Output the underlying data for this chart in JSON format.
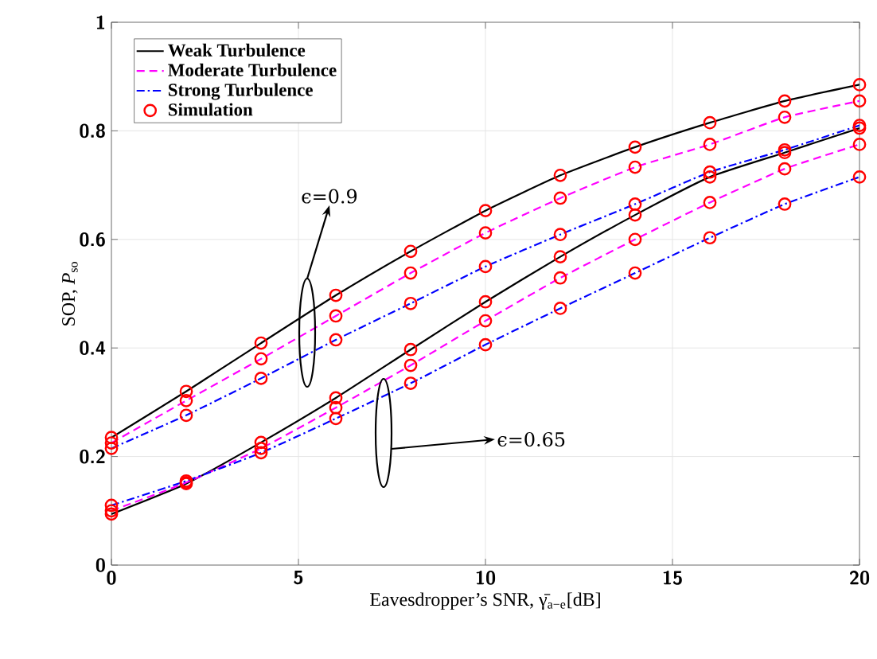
{
  "chart_data": {
    "type": "line",
    "xlabel": "Eavesdropper’s SNR, γ̄$_{a−e}$[dB]",
    "ylabel": "SOP, *P*$_{so}$",
    "x": [
      0,
      2,
      4,
      6,
      8,
      10,
      12,
      14,
      16,
      18,
      20
    ],
    "xlim": [
      0,
      20
    ],
    "xticks": [
      0,
      5,
      10,
      15,
      20
    ],
    "ylim": [
      0,
      1
    ],
    "yticks": [
      0,
      0.2,
      0.4,
      0.6,
      0.8,
      1
    ],
    "grid": true,
    "legend": "top left",
    "marker": "none",
    "series": [
      {
        "name": "Weak Turbulence",
        "color": "#000000",
        "line_style": "solid",
        "values": [
          0.235,
          0.32,
          0.409,
          0.497,
          0.578,
          0.653,
          0.718,
          0.77,
          0.815,
          0.855,
          0.885
        ]
      },
      {
        "name": "Moderate Turbulence",
        "color": "#ff00ff",
        "line_style": "dashed",
        "values": [
          0.225,
          0.303,
          0.38,
          0.459,
          0.538,
          0.612,
          0.676,
          0.733,
          0.775,
          0.825,
          0.855
        ]
      },
      {
        "name": "Strong Turbulence",
        "color": "#0000ff",
        "line_style": "dashdot",
        "values": [
          0.215,
          0.276,
          0.344,
          0.415,
          0.482,
          0.55,
          0.609,
          0.665,
          0.724,
          0.765,
          0.81
        ]
      },
      {
        "color": "#000000",
        "line_style": "solid",
        "values": [
          0.094,
          0.15,
          0.226,
          0.308,
          0.397,
          0.485,
          0.568,
          0.645,
          0.715,
          0.76,
          0.805
        ]
      },
      {
        "color": "#ff00ff",
        "line_style": "dashed",
        "values": [
          0.1,
          0.152,
          0.215,
          0.29,
          0.368,
          0.45,
          0.529,
          0.6,
          0.668,
          0.73,
          0.775
        ]
      },
      {
        "color": "#0000ff",
        "line_style": "dashdot",
        "values": [
          0.11,
          0.155,
          0.207,
          0.27,
          0.335,
          0.406,
          0.473,
          0.538,
          0.603,
          0.665,
          0.715
        ]
      },
      {
        "name": "Simulation",
        "type": "scatter",
        "marker": "circle",
        "color": "#ff0000",
        "x": [
          0,
          2,
          4,
          6,
          8,
          10,
          12,
          14,
          16,
          18,
          20,
          0,
          2,
          4,
          6,
          8,
          10,
          12,
          14,
          16,
          18,
          20,
          0,
          2,
          4,
          6,
          8,
          10,
          12,
          14,
          16,
          18,
          20,
          0,
          2,
          4,
          6,
          8,
          10,
          12,
          14,
          16,
          18,
          20,
          0,
          2,
          4,
          6,
          8,
          10,
          12,
          14,
          16,
          18,
          20,
          0,
          2,
          4,
          6,
          8,
          10,
          12,
          14,
          16,
          18,
          20
        ],
        "values": [
          0.235,
          0.32,
          0.409,
          0.497,
          0.578,
          0.653,
          0.718,
          0.77,
          0.815,
          0.855,
          0.885,
          0.225,
          0.303,
          0.38,
          0.459,
          0.538,
          0.612,
          0.676,
          0.733,
          0.775,
          0.825,
          0.855,
          0.215,
          0.276,
          0.344,
          0.415,
          0.482,
          0.55,
          0.609,
          0.665,
          0.724,
          0.765,
          0.81,
          0.094,
          0.15,
          0.226,
          0.308,
          0.397,
          0.485,
          0.568,
          0.645,
          0.715,
          0.76,
          0.805,
          0.1,
          0.152,
          0.215,
          0.29,
          0.368,
          0.45,
          0.529,
          0.6,
          0.668,
          0.73,
          0.775,
          0.11,
          0.155,
          0.207,
          0.27,
          0.335,
          0.406,
          0.473,
          0.538,
          0.603,
          0.665,
          0.715
        ]
      }
    ],
    "annotations": [
      "ϵ=0.9",
      "ϵ=0.65"
    ]
  }
}
